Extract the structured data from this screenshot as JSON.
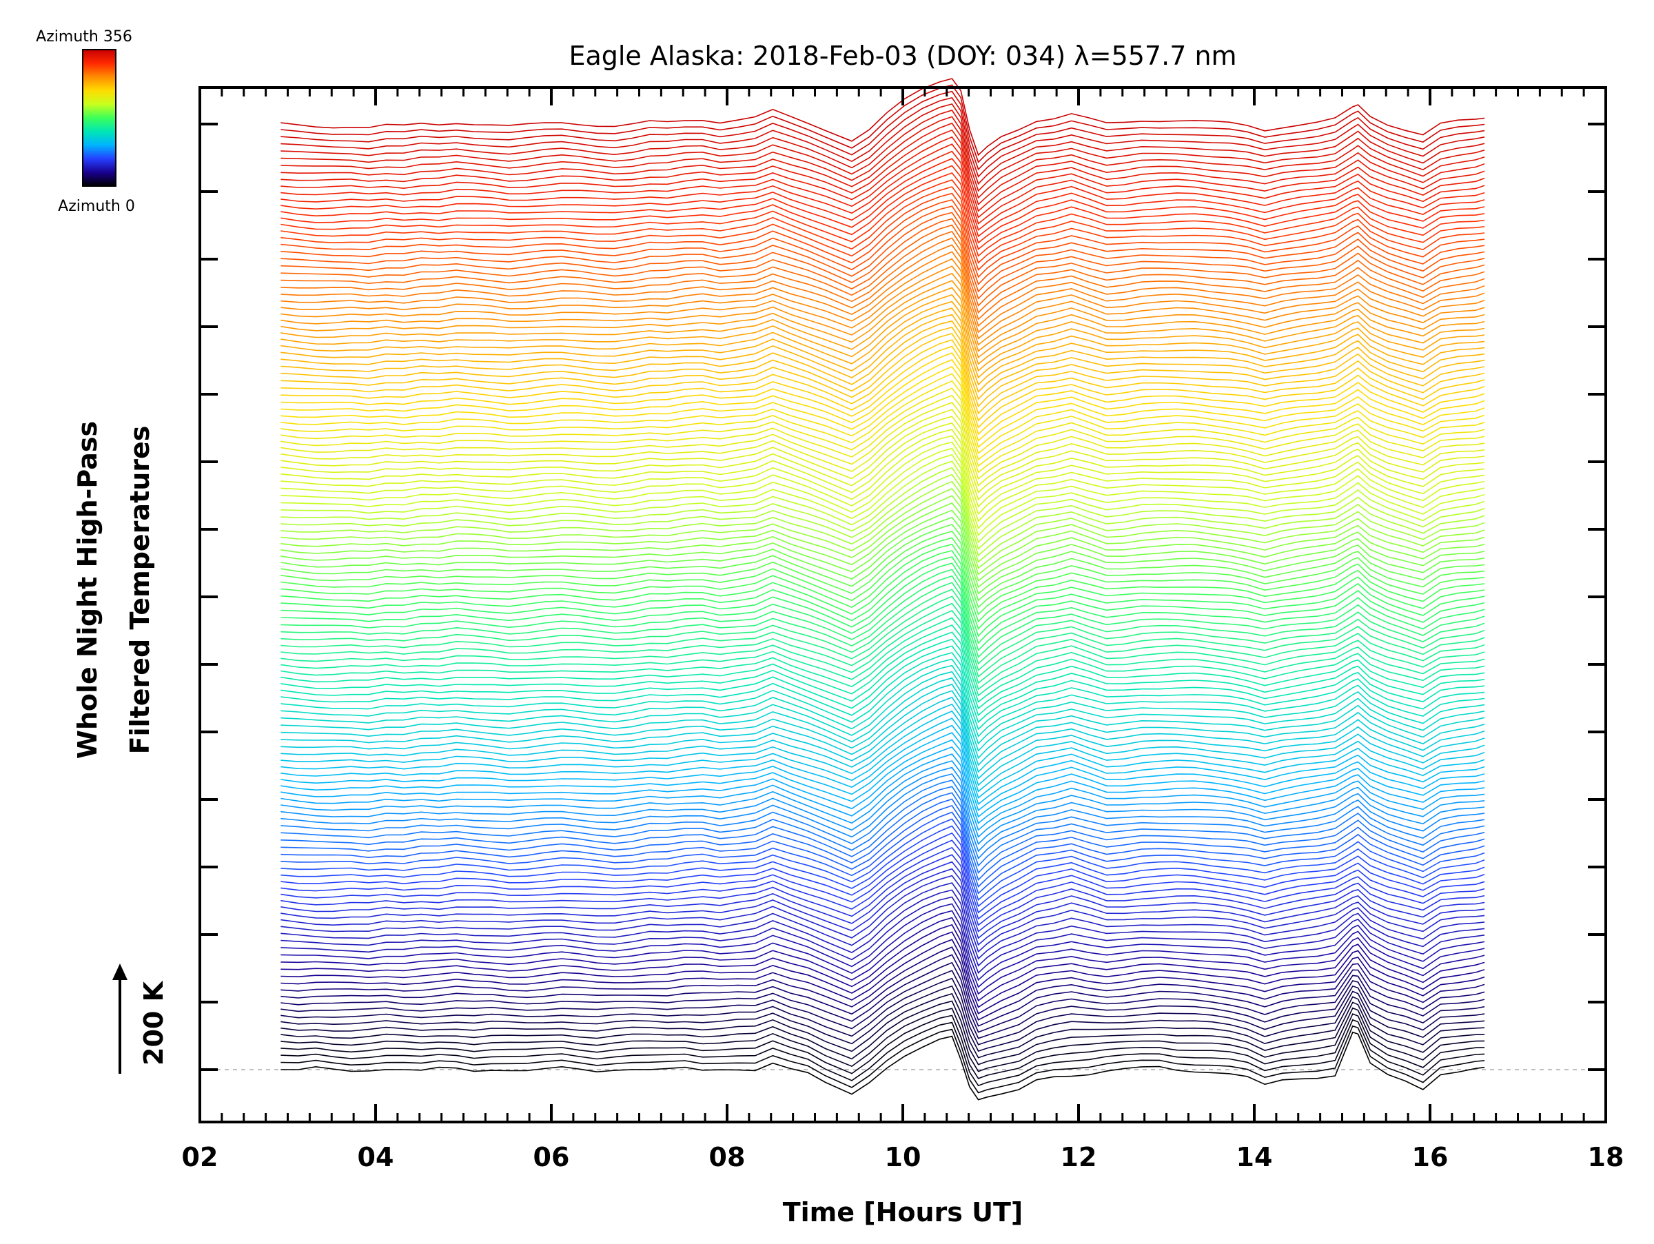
{
  "chart_data": {
    "type": "line",
    "title": "Eagle Alaska: 2018-Feb-03 (DOY: 034) λ=557.7 nm",
    "xlabel": "Time [Hours UT]",
    "ylabel_line1": "Whole Night High-Pass",
    "ylabel_line2": "Filtered Temperatures",
    "xlim": [
      2,
      18
    ],
    "x_tick_labels": [
      "02",
      "04",
      "06",
      "08",
      "10",
      "12",
      "14",
      "16",
      "18"
    ],
    "x_tick_values": [
      2,
      4,
      6,
      8,
      10,
      12,
      14,
      16,
      18
    ],
    "scale_bar_label": "200 K",
    "scale_bar_value_K": 200,
    "colorbar": {
      "top_label": "Azimuth 356",
      "bottom_label": "Azimuth 0",
      "colormap": "rainbow",
      "colors": [
        "#000000",
        "#1a0090",
        "#2540ff",
        "#00b4ff",
        "#00e6b4",
        "#3cff5a",
        "#c8ff1e",
        "#ffdc00",
        "#ff8c00",
        "#ff2800",
        "#c80000"
      ]
    },
    "series_count": 141,
    "azimuth_range_deg": [
      0,
      356
    ],
    "azimuth_step_deg": 2.54,
    "baseline_dashed": true,
    "time_hours": [
      2.92,
      3.12,
      3.32,
      3.52,
      3.72,
      3.92,
      4.12,
      4.32,
      4.52,
      4.72,
      4.92,
      5.12,
      5.32,
      5.52,
      5.72,
      5.92,
      6.12,
      6.32,
      6.52,
      6.72,
      6.92,
      7.12,
      7.32,
      7.52,
      7.72,
      7.92,
      8.12,
      8.32,
      8.52,
      8.72,
      8.92,
      9.12,
      9.42,
      9.62,
      9.82,
      10.02,
      10.22,
      10.42,
      10.56,
      10.66,
      10.76,
      10.86,
      10.96,
      11.12,
      11.32,
      11.52,
      11.72,
      11.92,
      12.12,
      12.32,
      12.52,
      12.72,
      12.92,
      13.12,
      13.32,
      13.52,
      13.72,
      13.92,
      14.12,
      14.32,
      14.52,
      14.72,
      14.92,
      15.12,
      15.18,
      15.32,
      15.52,
      15.72,
      15.92,
      16.12,
      16.32,
      16.52,
      16.62
    ],
    "profiles": {
      "lowest": [
        0,
        -2,
        3,
        0,
        -2,
        0,
        2,
        0,
        -3,
        2,
        2,
        -2,
        1,
        0,
        -2,
        0,
        3,
        0,
        -3,
        1,
        2,
        0,
        0,
        2,
        -2,
        1,
        2,
        0,
        12,
        0,
        -8,
        -25,
        -45,
        -22,
        5,
        25,
        40,
        55,
        62,
        20,
        -30,
        -55,
        -52,
        -48,
        -40,
        -20,
        -12,
        -10,
        -8,
        -3,
        0,
        3,
        5,
        0,
        -2,
        -4,
        -8,
        -15,
        -30,
        -20,
        -16,
        -14,
        -10,
        70,
        65,
        10,
        -10,
        -20,
        -35,
        -8,
        -5,
        0,
        2
      ],
      "upper": [
        0,
        -3,
        -5,
        -5,
        -4,
        -6,
        -2,
        -4,
        0,
        -1,
        3,
        1,
        -1,
        -4,
        -2,
        1,
        3,
        1,
        -2,
        -4,
        -1,
        4,
        3,
        7,
        9,
        4,
        8,
        12,
        25,
        13,
        2,
        -10,
        -30,
        -10,
        20,
        45,
        65,
        80,
        88,
        65,
        -10,
        -60,
        -45,
        -25,
        -10,
        7,
        12,
        20,
        10,
        0,
        2,
        6,
        7,
        8,
        7,
        4,
        1,
        -4,
        -12,
        -5,
        0,
        4,
        10,
        30,
        35,
        15,
        0,
        -10,
        -20,
        0,
        5,
        8,
        12
      ]
    }
  }
}
